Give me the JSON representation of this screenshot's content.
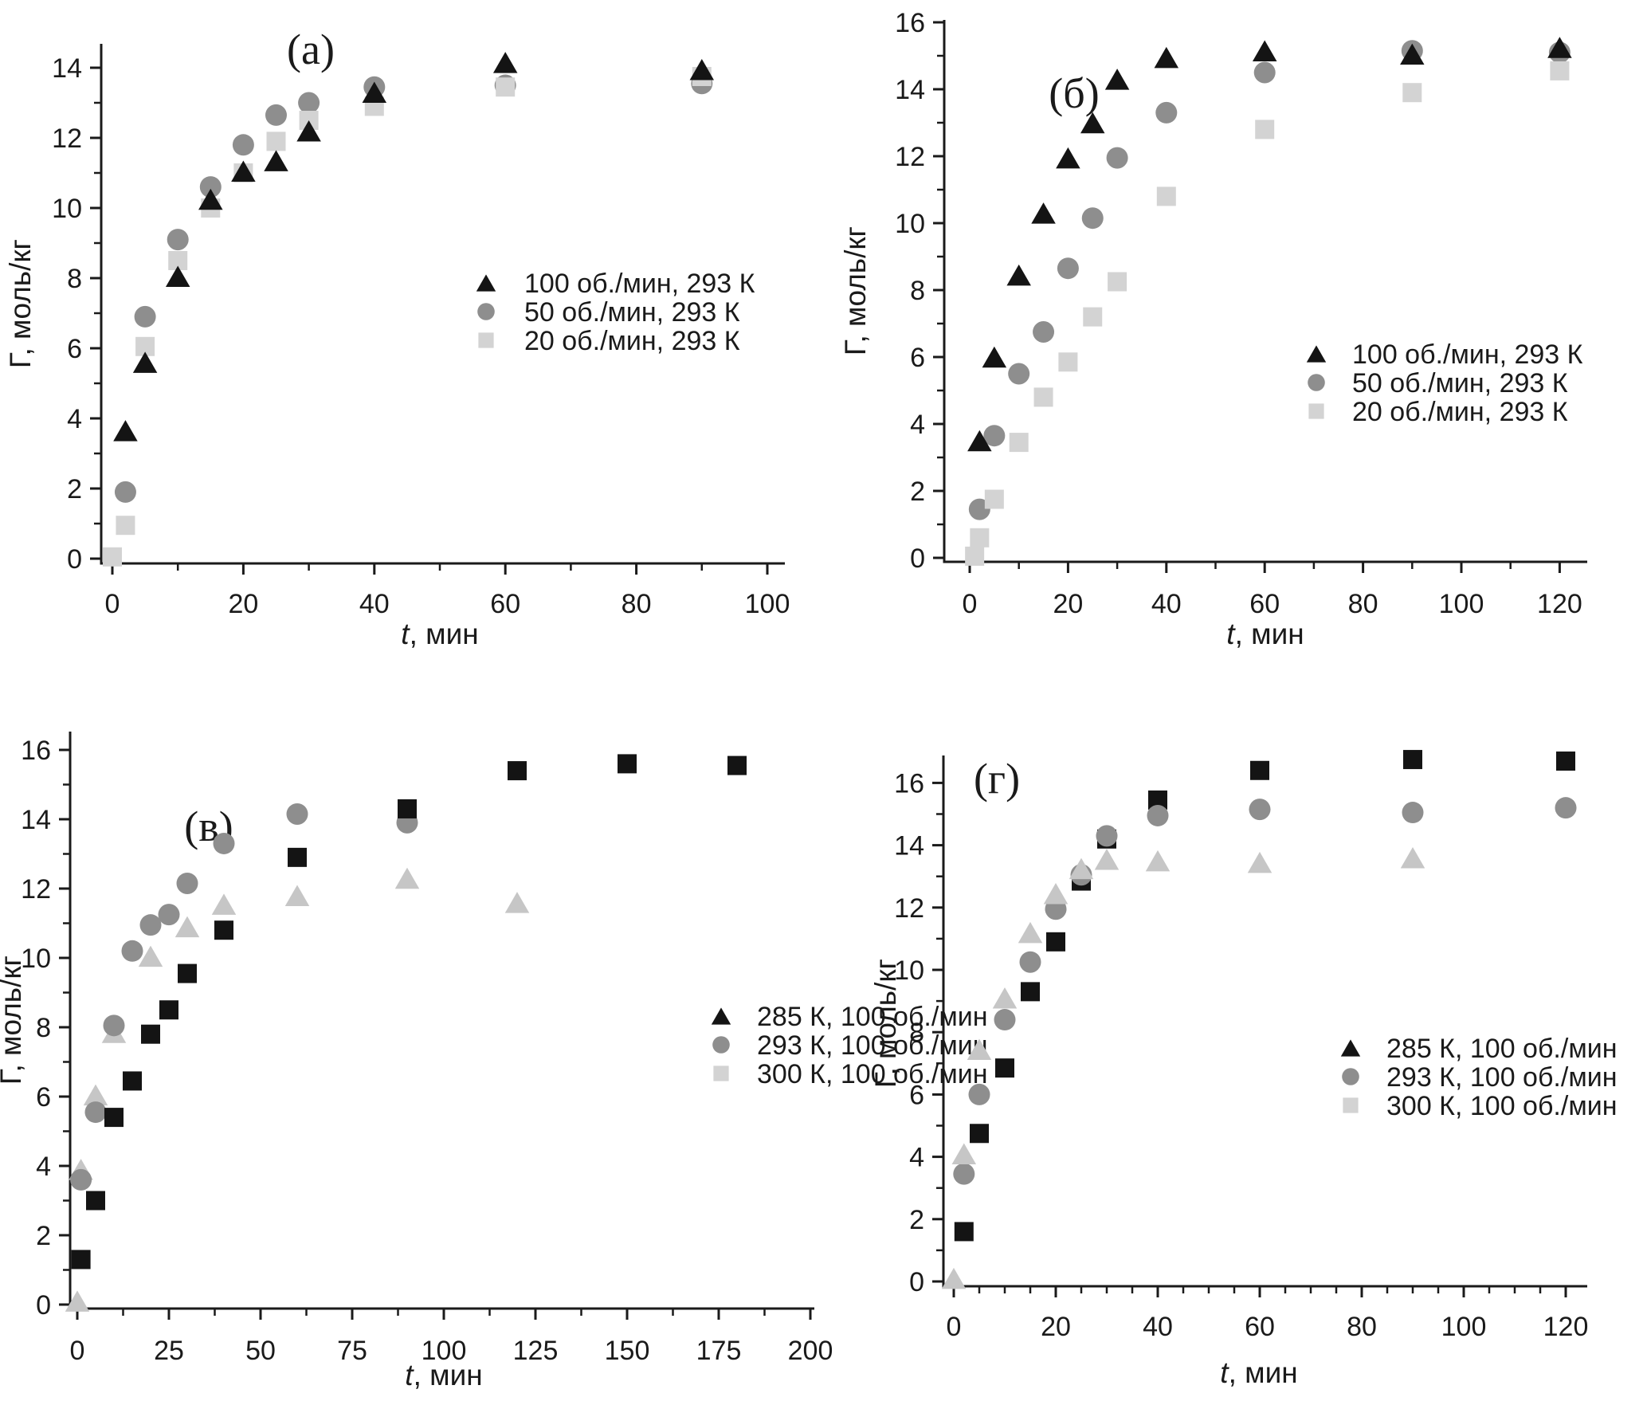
{
  "figure_title": "",
  "style": {
    "background": "#ffffff",
    "axis_color": "#1a1a1a",
    "text_color": "#1a1a1a",
    "marker_colors": {
      "black": "#141414",
      "gray": "#8e8e8e",
      "light": "#d3d3d3",
      "light2": "#c6c6c6"
    }
  },
  "chart_data": [
    {
      "id": "a",
      "type": "scatter",
      "panel_label": "(а)",
      "ylabel": "Г, моль/кг",
      "xlabel_parts": [
        "t",
        ", мин"
      ],
      "xlim": [
        -2,
        103
      ],
      "ylim": [
        0,
        14.7
      ],
      "x_ticks": [
        0,
        20,
        40,
        60,
        80,
        100
      ],
      "x_minor_step": 10,
      "y_ticks": [
        0,
        2,
        4,
        6,
        8,
        10,
        12,
        14
      ],
      "y_minor_step": 1,
      "grid": false,
      "legend_position": "center-right",
      "series": [
        {
          "label": "100 об./мин, 293 К",
          "marker": "triangle",
          "color": "black",
          "z": 3,
          "points": [
            [
              2,
              3.65
            ],
            [
              5,
              5.6
            ],
            [
              10,
              8.05
            ],
            [
              15,
              10.25
            ],
            [
              20,
              11.05
            ],
            [
              25,
              11.35
            ],
            [
              30,
              12.2
            ],
            [
              40,
              13.3
            ],
            [
              60,
              14.15
            ],
            [
              90,
              13.95
            ]
          ]
        },
        {
          "label": "50 об./мин, 293 К",
          "marker": "circle",
          "color": "gray",
          "z": 1,
          "points": [
            [
              2,
              1.9
            ],
            [
              5,
              6.9
            ],
            [
              10,
              9.1
            ],
            [
              15,
              10.6
            ],
            [
              20,
              11.8
            ],
            [
              25,
              12.65
            ],
            [
              30,
              13.0
            ],
            [
              40,
              13.45
            ],
            [
              60,
              13.5
            ],
            [
              90,
              13.55
            ]
          ]
        },
        {
          "label": "20 об./мин, 293 К",
          "marker": "square",
          "color": "light",
          "z": 2,
          "points": [
            [
              0,
              0.05
            ],
            [
              2,
              0.95
            ],
            [
              5,
              6.05
            ],
            [
              10,
              8.5
            ],
            [
              15,
              10.0
            ],
            [
              20,
              11.0
            ],
            [
              25,
              11.9
            ],
            [
              30,
              12.5
            ],
            [
              40,
              12.9
            ],
            [
              60,
              13.45
            ],
            [
              90,
              13.75
            ]
          ]
        }
      ]
    },
    {
      "id": "b",
      "type": "scatter",
      "panel_label": "(б)",
      "ylabel": "Г, моль/кг",
      "xlabel_parts": [
        "t",
        ", мин"
      ],
      "xlim": [
        -5,
        126
      ],
      "ylim": [
        0,
        16.1
      ],
      "x_ticks": [
        0,
        20,
        40,
        60,
        80,
        100,
        120
      ],
      "x_minor_step": 10,
      "y_ticks": [
        0,
        2,
        4,
        6,
        8,
        10,
        12,
        14,
        16
      ],
      "y_minor_step": 1,
      "grid": false,
      "legend_position": "center-right",
      "series": [
        {
          "label": "100 об./мин, 293 К",
          "marker": "triangle",
          "color": "black",
          "z": 3,
          "points": [
            [
              2,
              3.5
            ],
            [
              5,
              6.0
            ],
            [
              10,
              8.45
            ],
            [
              15,
              10.3
            ],
            [
              20,
              11.95
            ],
            [
              25,
              13.0
            ],
            [
              30,
              14.3
            ],
            [
              40,
              14.95
            ],
            [
              60,
              15.15
            ],
            [
              90,
              15.05
            ],
            [
              120,
              15.25
            ]
          ]
        },
        {
          "label": "50 об./мин, 293 К",
          "marker": "circle",
          "color": "gray",
          "z": 1,
          "points": [
            [
              2,
              1.45
            ],
            [
              5,
              3.65
            ],
            [
              10,
              5.5
            ],
            [
              15,
              6.75
            ],
            [
              20,
              8.65
            ],
            [
              25,
              10.15
            ],
            [
              30,
              11.95
            ],
            [
              40,
              13.3
            ],
            [
              60,
              14.5
            ],
            [
              90,
              15.15
            ],
            [
              120,
              15.1
            ]
          ]
        },
        {
          "label": "20 об./мин, 293 К",
          "marker": "square",
          "color": "light",
          "z": 2,
          "points": [
            [
              1,
              0.05
            ],
            [
              2,
              0.6
            ],
            [
              5,
              1.75
            ],
            [
              10,
              3.45
            ],
            [
              15,
              4.8
            ],
            [
              20,
              5.85
            ],
            [
              25,
              7.2
            ],
            [
              30,
              8.25
            ],
            [
              40,
              10.8
            ],
            [
              60,
              12.8
            ],
            [
              90,
              13.9
            ],
            [
              120,
              14.55
            ]
          ]
        }
      ]
    },
    {
      "id": "v",
      "type": "scatter",
      "panel_label": "(в)",
      "ylabel": "Г, моль/кг",
      "xlabel_parts": [
        "t",
        ", мин"
      ],
      "xlim": [
        -2,
        201
      ],
      "ylim": [
        0,
        16.5
      ],
      "x_ticks": [
        0,
        25,
        50,
        75,
        100,
        125,
        150,
        175,
        200
      ],
      "x_minor_step": 12.5,
      "y_ticks": [
        0,
        2,
        4,
        6,
        8,
        10,
        12,
        14,
        16
      ],
      "y_minor_step": 1,
      "grid": false,
      "legend_position": "center-right",
      "series": [
        {
          "label": "285 К, 100 об./мин",
          "marker": "square",
          "legend_marker": "triangle",
          "color": "black",
          "z": 3,
          "points": [
            [
              1,
              1.3
            ],
            [
              5,
              3.0
            ],
            [
              10,
              5.4
            ],
            [
              15,
              6.45
            ],
            [
              20,
              7.8
            ],
            [
              25,
              8.5
            ],
            [
              30,
              9.55
            ],
            [
              40,
              10.8
            ],
            [
              60,
              12.9
            ],
            [
              90,
              14.3
            ],
            [
              120,
              15.4
            ],
            [
              150,
              15.6
            ],
            [
              180,
              15.55
            ]
          ]
        },
        {
          "label": "293 К, 100 об./мин",
          "marker": "circle",
          "color": "gray",
          "z": 2,
          "points": [
            [
              1,
              3.6
            ],
            [
              5,
              5.55
            ],
            [
              10,
              8.05
            ],
            [
              15,
              10.2
            ],
            [
              20,
              10.95
            ],
            [
              25,
              11.25
            ],
            [
              30,
              12.15
            ],
            [
              40,
              13.3
            ],
            [
              60,
              14.15
            ],
            [
              90,
              13.9
            ]
          ]
        },
        {
          "label": "300 К, 100 об./мин",
          "marker": "triangle",
          "legend_marker": "square",
          "color": "light2",
          "legend_color": "light",
          "z": 1,
          "points": [
            [
              0,
              0.1
            ],
            [
              1,
              3.9
            ],
            [
              5,
              6.05
            ],
            [
              10,
              7.85
            ],
            [
              20,
              10.05
            ],
            [
              30,
              10.9
            ],
            [
              40,
              11.55
            ],
            [
              60,
              11.8
            ],
            [
              90,
              12.3
            ],
            [
              120,
              11.6
            ]
          ]
        }
      ]
    },
    {
      "id": "g",
      "type": "scatter",
      "panel_label": "(г)",
      "ylabel": "Г, моль/кг",
      "xlabel_parts": [
        "t",
        ", мин"
      ],
      "xlim": [
        -2,
        124
      ],
      "ylim": [
        0,
        16.8
      ],
      "x_ticks": [
        0,
        20,
        40,
        60,
        80,
        100,
        120
      ],
      "x_minor_step": 5,
      "y_ticks": [
        0,
        2,
        4,
        6,
        8,
        10,
        12,
        14,
        16
      ],
      "y_minor_step": 1,
      "grid": false,
      "legend_position": "center-right",
      "series": [
        {
          "label": "285 К, 100 об./мин",
          "marker": "square",
          "legend_marker": "triangle",
          "color": "black",
          "z": 1,
          "points": [
            [
              2,
              1.6
            ],
            [
              5,
              4.75
            ],
            [
              10,
              6.85
            ],
            [
              15,
              9.3
            ],
            [
              20,
              10.9
            ],
            [
              25,
              12.85
            ],
            [
              30,
              14.2
            ],
            [
              40,
              15.45
            ],
            [
              60,
              16.4
            ],
            [
              90,
              16.75
            ],
            [
              120,
              16.7
            ]
          ]
        },
        {
          "label": "293 К, 100 об./мин",
          "marker": "circle",
          "color": "gray",
          "z": 2,
          "points": [
            [
              2,
              3.45
            ],
            [
              5,
              6.0
            ],
            [
              10,
              8.4
            ],
            [
              15,
              10.25
            ],
            [
              20,
              11.95
            ],
            [
              25,
              13.05
            ],
            [
              30,
              14.3
            ],
            [
              40,
              14.95
            ],
            [
              60,
              15.15
            ],
            [
              90,
              15.05
            ],
            [
              120,
              15.2
            ]
          ]
        },
        {
          "label": "300 К, 100 об./мин",
          "marker": "triangle",
          "legend_marker": "square",
          "color": "light2",
          "legend_color": "light",
          "z": 3,
          "points": [
            [
              0,
              0.1
            ],
            [
              2,
              4.1
            ],
            [
              5,
              7.45
            ],
            [
              10,
              9.1
            ],
            [
              15,
              11.2
            ],
            [
              20,
              12.45
            ],
            [
              25,
              13.25
            ],
            [
              30,
              13.55
            ],
            [
              40,
              13.5
            ],
            [
              60,
              13.45
            ],
            [
              90,
              13.6
            ]
          ]
        }
      ]
    }
  ]
}
